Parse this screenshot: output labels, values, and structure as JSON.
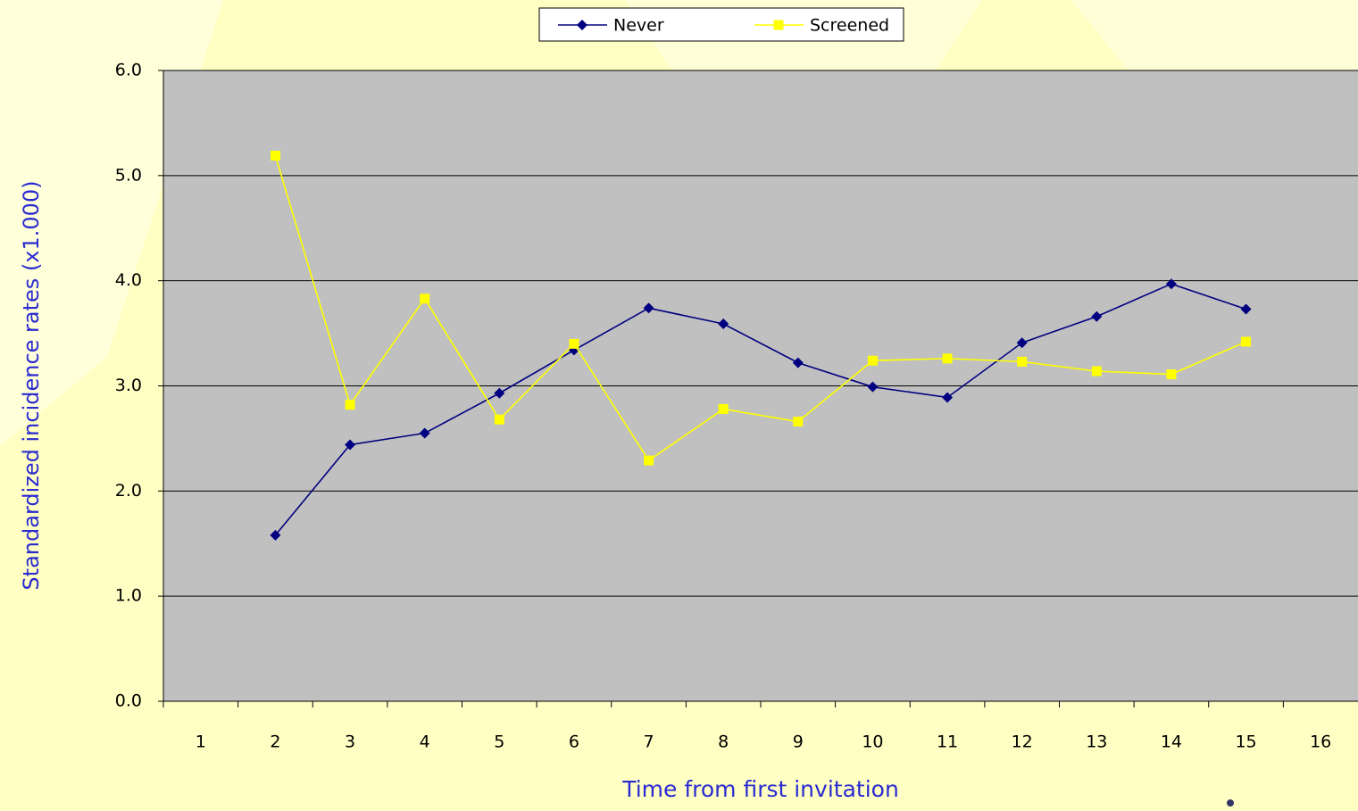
{
  "chart_data": {
    "type": "line",
    "y_label": "Standardized incidence rates (x1.000)",
    "x_label": "Time from first invitation",
    "categories": [
      "1",
      "2",
      "3",
      "4",
      "5",
      "6",
      "7",
      "8",
      "9",
      "10",
      "11",
      "12",
      "13",
      "14",
      "15",
      "16"
    ],
    "series": [
      {
        "name": "Never",
        "color": "#000080",
        "marker": "diamond",
        "values": [
          null,
          1.58,
          2.44,
          2.55,
          2.93,
          3.34,
          3.74,
          3.59,
          3.22,
          2.99,
          2.89,
          3.41,
          3.66,
          3.97,
          3.73,
          null
        ]
      },
      {
        "name": "Screened",
        "color": "#ffff00",
        "marker": "square",
        "values": [
          null,
          5.19,
          2.82,
          3.83,
          2.68,
          3.4,
          2.29,
          2.78,
          2.66,
          3.24,
          3.26,
          3.23,
          3.14,
          3.11,
          3.42,
          null
        ]
      }
    ],
    "ylim": [
      0,
      6
    ],
    "yticks": [
      {
        "value": 0,
        "label": "0.0"
      },
      {
        "value": 1,
        "label": "1.0"
      },
      {
        "value": 2,
        "label": "2.0"
      },
      {
        "value": 3,
        "label": "3.0"
      },
      {
        "value": 4,
        "label": "4.0"
      },
      {
        "value": 5,
        "label": "5.0"
      },
      {
        "value": 6,
        "label": "6.0"
      }
    ],
    "grid": true,
    "legend": "top"
  }
}
